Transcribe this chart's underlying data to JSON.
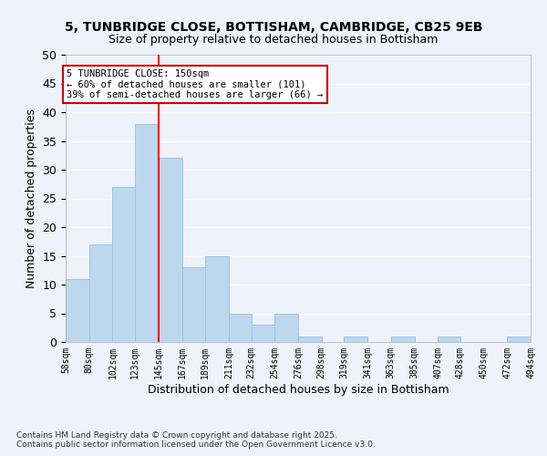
{
  "title": "5, TUNBRIDGE CLOSE, BOTTISHAM, CAMBRIDGE, CB25 9EB",
  "subtitle": "Size of property relative to detached houses in Bottisham",
  "xlabel": "Distribution of detached houses by size in Bottisham",
  "ylabel": "Number of detached properties",
  "bar_values": [
    11,
    17,
    27,
    38,
    32,
    13,
    15,
    5,
    3,
    5,
    1,
    0,
    1,
    0,
    1,
    0,
    1,
    0,
    0,
    1
  ],
  "bin_labels": [
    "58sqm",
    "80sqm",
    "102sqm",
    "123sqm",
    "145sqm",
    "167sqm",
    "189sqm",
    "211sqm",
    "232sqm",
    "254sqm",
    "276sqm",
    "298sqm",
    "319sqm",
    "341sqm",
    "363sqm",
    "385sqm",
    "407sqm",
    "428sqm",
    "450sqm",
    "472sqm",
    "494sqm"
  ],
  "bin_edges": [
    58,
    80,
    102,
    123,
    145,
    167,
    189,
    211,
    232,
    254,
    276,
    298,
    319,
    341,
    363,
    385,
    407,
    428,
    450,
    472,
    494
  ],
  "bar_color": "#bdd7ee",
  "bar_edge_color": "#9dc3e6",
  "red_line_x": 145,
  "ylim": [
    0,
    50
  ],
  "annotation_title": "5 TUNBRIDGE CLOSE: 150sqm",
  "annotation_line1": "← 60% of detached houses are smaller (101)",
  "annotation_line2": "39% of semi-detached houses are larger (66) →",
  "annotation_box_color": "#ffffff",
  "annotation_box_edge": "#cc0000",
  "footnote1": "Contains HM Land Registry data © Crown copyright and database right 2025.",
  "footnote2": "Contains public sector information licensed under the Open Government Licence v3.0.",
  "background_color": "#eef2fb",
  "grid_color": "#ffffff"
}
